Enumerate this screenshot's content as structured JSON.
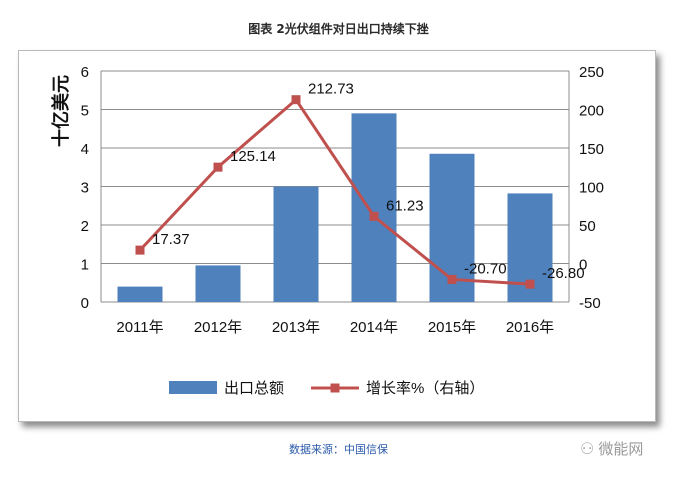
{
  "caption": "图表 2光伏组件对日出口持续下挫",
  "source": "数据来源：中国信保",
  "watermark": "微能网",
  "chart_data": {
    "type": "bar",
    "categories": [
      "2011年",
      "2012年",
      "2013年",
      "2014年",
      "2015年",
      "2016年"
    ],
    "ylabel": "十亿美元",
    "ylim": [
      0,
      6
    ],
    "yticks": [
      "0",
      "1",
      "2",
      "3",
      "4",
      "5",
      "6"
    ],
    "y2lim": [
      -50,
      250
    ],
    "y2ticks": [
      "-50",
      "0",
      "50",
      "100",
      "150",
      "200",
      "250"
    ],
    "grid": true,
    "legend_position": "bottom",
    "series": [
      {
        "name": "出口总额",
        "type": "bar",
        "axis": "left",
        "color": "#4f81bd",
        "values": [
          0.4,
          0.95,
          3.0,
          4.9,
          3.85,
          2.82
        ]
      },
      {
        "name": "增长率%（右轴）",
        "type": "line",
        "axis": "right",
        "color": "#c0504d",
        "values": [
          17.37,
          125.14,
          212.73,
          61.23,
          -20.7,
          -26.8
        ],
        "labels": [
          "17.37",
          "125.14",
          "212.73",
          "61.23",
          "-20.70",
          "-26.80"
        ]
      }
    ]
  }
}
